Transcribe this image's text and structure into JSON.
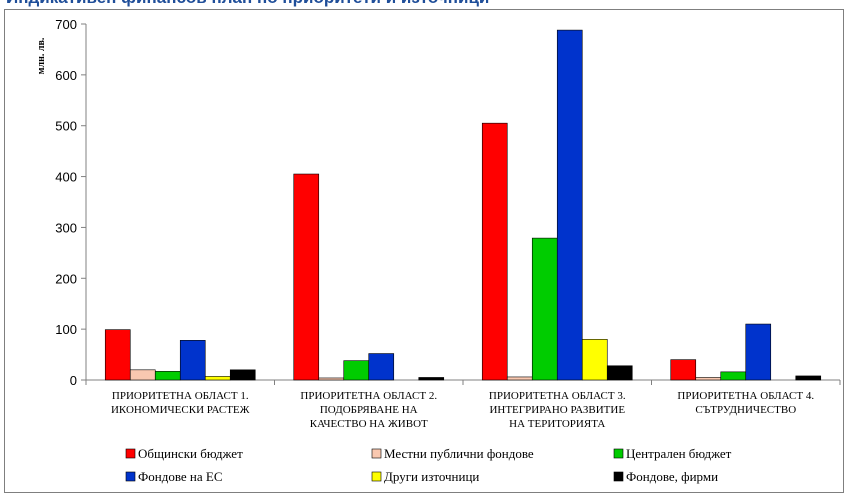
{
  "page_title": "Индикативен финансов план по приоритети и източници",
  "chart_data": {
    "type": "bar",
    "ylabel": "млн. лв.",
    "ylim": [
      0,
      700
    ],
    "yticks": [
      0,
      100,
      200,
      300,
      400,
      500,
      600,
      700
    ],
    "categories": [
      [
        "ПРИОРИТЕТНА ОБЛАСТ 1.",
        "ИКОНОМИЧЕСКИ РАСТЕЖ"
      ],
      [
        "ПРИОРИТЕТНА ОБЛАСТ 2.",
        "ПОДОБРЯВАНЕ НА",
        "КАЧЕСТВО НА ЖИВОТ"
      ],
      [
        "ПРИОРИТЕТНА ОБЛАСТ 3.",
        "ИНТЕГРИРАНО РАЗВИТИЕ",
        "НА ТЕРИТОРИЯТА"
      ],
      [
        "ПРИОРИТЕТНА ОБЛАСТ 4.",
        "СЪТРУДНИЧЕСТВО"
      ]
    ],
    "series": [
      {
        "name": "Общински бюджет",
        "color": "#ff0000",
        "values": [
          99,
          405,
          505,
          40
        ]
      },
      {
        "name": "Местни публични фондове",
        "color": "#f9c8b0",
        "values": [
          20,
          4,
          6,
          5
        ]
      },
      {
        "name": "Централен бюджет",
        "color": "#00cc00",
        "values": [
          17,
          38,
          279,
          16
        ]
      },
      {
        "name": "Фондове на ЕС",
        "color": "#0033cc",
        "values": [
          78,
          52,
          688,
          110
        ]
      },
      {
        "name": "Други източници",
        "color": "#ffff00",
        "values": [
          7,
          0,
          80,
          0
        ]
      },
      {
        "name": "Фондове, фирми",
        "color": "#000000",
        "values": [
          20,
          5,
          28,
          8
        ]
      }
    ],
    "legend_placement": "bottom",
    "grid": false
  }
}
